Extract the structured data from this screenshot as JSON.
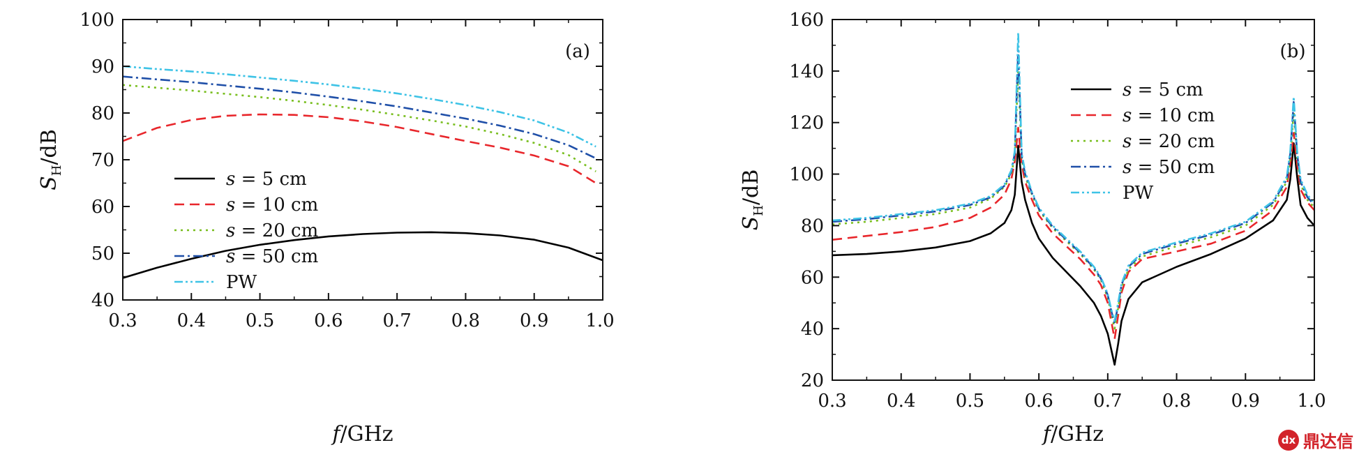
{
  "colors": {
    "s5": "#000000",
    "s10": "#e8262b",
    "s20": "#78be1e",
    "s50": "#1f4fa8",
    "pw": "#3ec3e6"
  },
  "watermark": {
    "icon": "dx",
    "text": "鼎达信"
  },
  "chart_data": [
    {
      "type": "line",
      "panel_label": "(a)",
      "xlabel_var": "f",
      "xlabel_unit": "/GHz",
      "ylabel_var": "S",
      "ylabel_sub": "H",
      "ylabel_unit": "/dB",
      "xlim": [
        0.3,
        1.0
      ],
      "ylim": [
        40,
        100
      ],
      "xticks": [
        "0.3",
        "0.4",
        "0.5",
        "0.6",
        "0.7",
        "0.8",
        "0.9",
        "1.0"
      ],
      "yticks": [
        "40",
        "50",
        "60",
        "70",
        "80",
        "90",
        "100"
      ],
      "legend_position": "middle-left",
      "series": [
        {
          "name": "s = 5 cm",
          "key": "s5",
          "dash": "solid",
          "x": [
            0.3,
            0.35,
            0.4,
            0.45,
            0.5,
            0.55,
            0.6,
            0.65,
            0.7,
            0.75,
            0.8,
            0.85,
            0.9,
            0.95,
            1.0
          ],
          "y": [
            44.7,
            46.9,
            48.8,
            50.5,
            51.8,
            52.8,
            53.6,
            54.1,
            54.4,
            54.5,
            54.3,
            53.8,
            52.9,
            51.2,
            48.5
          ]
        },
        {
          "name": "s = 10 cm",
          "key": "s10",
          "dash": "dash",
          "x": [
            0.3,
            0.35,
            0.4,
            0.45,
            0.5,
            0.55,
            0.6,
            0.65,
            0.7,
            0.75,
            0.8,
            0.85,
            0.9,
            0.95,
            0.99
          ],
          "y": [
            74.0,
            76.8,
            78.5,
            79.4,
            79.7,
            79.6,
            79.1,
            78.2,
            77.0,
            75.5,
            74.0,
            72.6,
            70.9,
            68.6,
            65.0
          ]
        },
        {
          "name": "s = 20 cm",
          "key": "s20",
          "dash": "dot",
          "x": [
            0.3,
            0.35,
            0.4,
            0.45,
            0.5,
            0.55,
            0.6,
            0.65,
            0.7,
            0.75,
            0.8,
            0.85,
            0.9,
            0.95,
            0.99
          ],
          "y": [
            86.0,
            85.4,
            84.8,
            84.1,
            83.4,
            82.6,
            81.7,
            80.7,
            79.6,
            78.4,
            77.1,
            75.5,
            73.6,
            71.0,
            67.5
          ]
        },
        {
          "name": "s = 50 cm",
          "key": "s50",
          "dash": "dashdot",
          "x": [
            0.3,
            0.35,
            0.4,
            0.45,
            0.5,
            0.55,
            0.6,
            0.65,
            0.7,
            0.75,
            0.8,
            0.85,
            0.9,
            0.95,
            0.99
          ],
          "y": [
            87.8,
            87.2,
            86.6,
            85.9,
            85.2,
            84.4,
            83.5,
            82.5,
            81.4,
            80.1,
            78.8,
            77.3,
            75.5,
            73.1,
            70.3
          ]
        },
        {
          "name": "PW",
          "key": "pw",
          "dash": "dashdotdot",
          "x": [
            0.3,
            0.35,
            0.4,
            0.45,
            0.5,
            0.55,
            0.6,
            0.65,
            0.7,
            0.75,
            0.8,
            0.85,
            0.9,
            0.95,
            0.99
          ],
          "y": [
            90.0,
            89.4,
            88.9,
            88.3,
            87.6,
            86.9,
            86.1,
            85.2,
            84.2,
            83.0,
            81.7,
            80.2,
            78.4,
            75.8,
            72.8
          ]
        }
      ]
    },
    {
      "type": "line",
      "panel_label": "(b)",
      "xlabel_var": "f",
      "xlabel_unit": "/GHz",
      "ylabel_var": "S",
      "ylabel_sub": "H",
      "ylabel_unit": "/dB",
      "xlim": [
        0.3,
        1.0
      ],
      "ylim": [
        20,
        160
      ],
      "xticks": [
        "0.3",
        "0.4",
        "0.5",
        "0.6",
        "0.7",
        "0.8",
        "0.9",
        "1.0"
      ],
      "yticks": [
        "20",
        "40",
        "60",
        "80",
        "100",
        "120",
        "140",
        "160"
      ],
      "legend_position": "top-center",
      "series": [
        {
          "name": "s = 5 cm",
          "key": "s5",
          "dash": "solid",
          "x": [
            0.3,
            0.35,
            0.4,
            0.45,
            0.5,
            0.53,
            0.55,
            0.56,
            0.565,
            0.57,
            0.575,
            0.58,
            0.59,
            0.6,
            0.62,
            0.64,
            0.66,
            0.68,
            0.69,
            0.7,
            0.705,
            0.71,
            0.715,
            0.72,
            0.73,
            0.75,
            0.8,
            0.85,
            0.9,
            0.94,
            0.96,
            0.965,
            0.97,
            0.975,
            0.98,
            0.99,
            1.0
          ],
          "y": [
            68.5,
            69.0,
            70.0,
            71.5,
            74.0,
            77.0,
            81.0,
            86.0,
            92.0,
            111.0,
            97.0,
            90.0,
            81.0,
            75.0,
            67.5,
            62.0,
            56.5,
            50.0,
            45.0,
            38.0,
            32.0,
            26.0,
            34.0,
            43.0,
            51.5,
            58.0,
            64.0,
            69.0,
            75.0,
            82.0,
            90.0,
            98.0,
            112.0,
            99.0,
            88.0,
            83.0,
            80.0
          ]
        },
        {
          "name": "s = 10 cm",
          "key": "s10",
          "dash": "dash",
          "x": [
            0.3,
            0.35,
            0.4,
            0.45,
            0.5,
            0.53,
            0.55,
            0.56,
            0.565,
            0.57,
            0.575,
            0.58,
            0.59,
            0.6,
            0.62,
            0.64,
            0.66,
            0.68,
            0.69,
            0.7,
            0.705,
            0.71,
            0.715,
            0.72,
            0.73,
            0.75,
            0.8,
            0.85,
            0.9,
            0.94,
            0.96,
            0.965,
            0.97,
            0.975,
            0.98,
            0.99,
            1.0
          ],
          "y": [
            74.5,
            76.0,
            77.5,
            79.5,
            83.0,
            87.0,
            92.0,
            98.0,
            105.0,
            118.0,
            104.0,
            97.0,
            90.0,
            84.0,
            77.0,
            72.0,
            67.0,
            61.0,
            57.0,
            50.0,
            43.0,
            36.0,
            45.0,
            54.0,
            62.0,
            67.0,
            70.0,
            73.0,
            78.0,
            86.0,
            95.0,
            104.0,
            116.0,
            104.0,
            94.0,
            89.0,
            86.0
          ]
        },
        {
          "name": "s = 20 cm",
          "key": "s20",
          "dash": "dot",
          "x": [
            0.3,
            0.35,
            0.4,
            0.45,
            0.5,
            0.53,
            0.55,
            0.56,
            0.565,
            0.57,
            0.575,
            0.58,
            0.59,
            0.6,
            0.62,
            0.64,
            0.66,
            0.68,
            0.69,
            0.7,
            0.705,
            0.71,
            0.715,
            0.72,
            0.73,
            0.75,
            0.8,
            0.85,
            0.9,
            0.94,
            0.96,
            0.965,
            0.97,
            0.975,
            0.98,
            0.99,
            1.0
          ],
          "y": [
            80.5,
            81.5,
            83.0,
            84.5,
            87.0,
            90.5,
            95.0,
            100.0,
            107.0,
            140.0,
            106.0,
            99.0,
            92.0,
            86.0,
            79.0,
            74.0,
            69.0,
            63.0,
            59.0,
            52.0,
            46.0,
            40.0,
            48.0,
            56.0,
            63.0,
            68.0,
            72.0,
            75.5,
            80.0,
            88.0,
            97.0,
            106.0,
            124.0,
            106.0,
            96.0,
            90.0,
            87.0
          ]
        },
        {
          "name": "s = 50 cm",
          "key": "s50",
          "dash": "dashdot",
          "x": [
            0.3,
            0.35,
            0.4,
            0.45,
            0.5,
            0.53,
            0.55,
            0.56,
            0.565,
            0.57,
            0.575,
            0.58,
            0.59,
            0.6,
            0.62,
            0.64,
            0.66,
            0.68,
            0.69,
            0.7,
            0.705,
            0.71,
            0.715,
            0.72,
            0.73,
            0.75,
            0.8,
            0.85,
            0.9,
            0.94,
            0.96,
            0.965,
            0.97,
            0.975,
            0.98,
            0.99,
            1.0
          ],
          "y": [
            81.5,
            82.5,
            84.0,
            85.5,
            88.0,
            91.0,
            95.5,
            101.0,
            108.0,
            148.0,
            107.0,
            100.0,
            92.5,
            86.5,
            79.5,
            74.5,
            69.5,
            63.5,
            59.5,
            53.0,
            47.0,
            42.0,
            49.0,
            57.0,
            64.0,
            69.0,
            73.0,
            76.5,
            81.0,
            89.0,
            98.0,
            108.0,
            128.0,
            108.0,
            97.0,
            91.0,
            88.0
          ]
        },
        {
          "name": "PW",
          "key": "pw",
          "dash": "dashdotdot",
          "x": [
            0.3,
            0.35,
            0.4,
            0.45,
            0.5,
            0.53,
            0.55,
            0.56,
            0.565,
            0.57,
            0.575,
            0.58,
            0.59,
            0.6,
            0.62,
            0.64,
            0.66,
            0.68,
            0.69,
            0.7,
            0.705,
            0.71,
            0.715,
            0.72,
            0.73,
            0.75,
            0.8,
            0.85,
            0.9,
            0.94,
            0.96,
            0.965,
            0.97,
            0.975,
            0.98,
            0.99,
            1.0
          ],
          "y": [
            82.0,
            83.0,
            84.5,
            86.0,
            88.5,
            91.5,
            96.0,
            101.5,
            109.0,
            155.0,
            108.0,
            101.0,
            93.0,
            87.0,
            80.0,
            75.0,
            70.0,
            64.0,
            60.0,
            53.5,
            47.5,
            43.0,
            50.0,
            57.5,
            64.5,
            69.5,
            73.5,
            77.0,
            81.5,
            89.5,
            99.0,
            109.0,
            130.0,
            109.0,
            98.0,
            92.0,
            88.5
          ]
        }
      ]
    }
  ]
}
